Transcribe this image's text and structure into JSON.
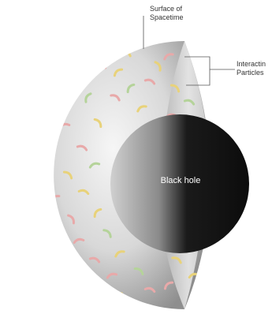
{
  "labels": {
    "surface_line1": "Surface of",
    "surface_line2": "Spacetime",
    "particles_line1": "Interactin",
    "particles_line2": "Particles",
    "black_hole": "Black hole"
  },
  "colors": {
    "sphere_light": "#f4f4f4",
    "sphere_dark": "#9a9a9a",
    "black_hole": "#111111",
    "particle_yellow": "#e8d27a",
    "particle_pink": "#e8a9a9",
    "particle_green": "#b5d39a"
  },
  "icons": {
    "particles": "particle-icon"
  }
}
